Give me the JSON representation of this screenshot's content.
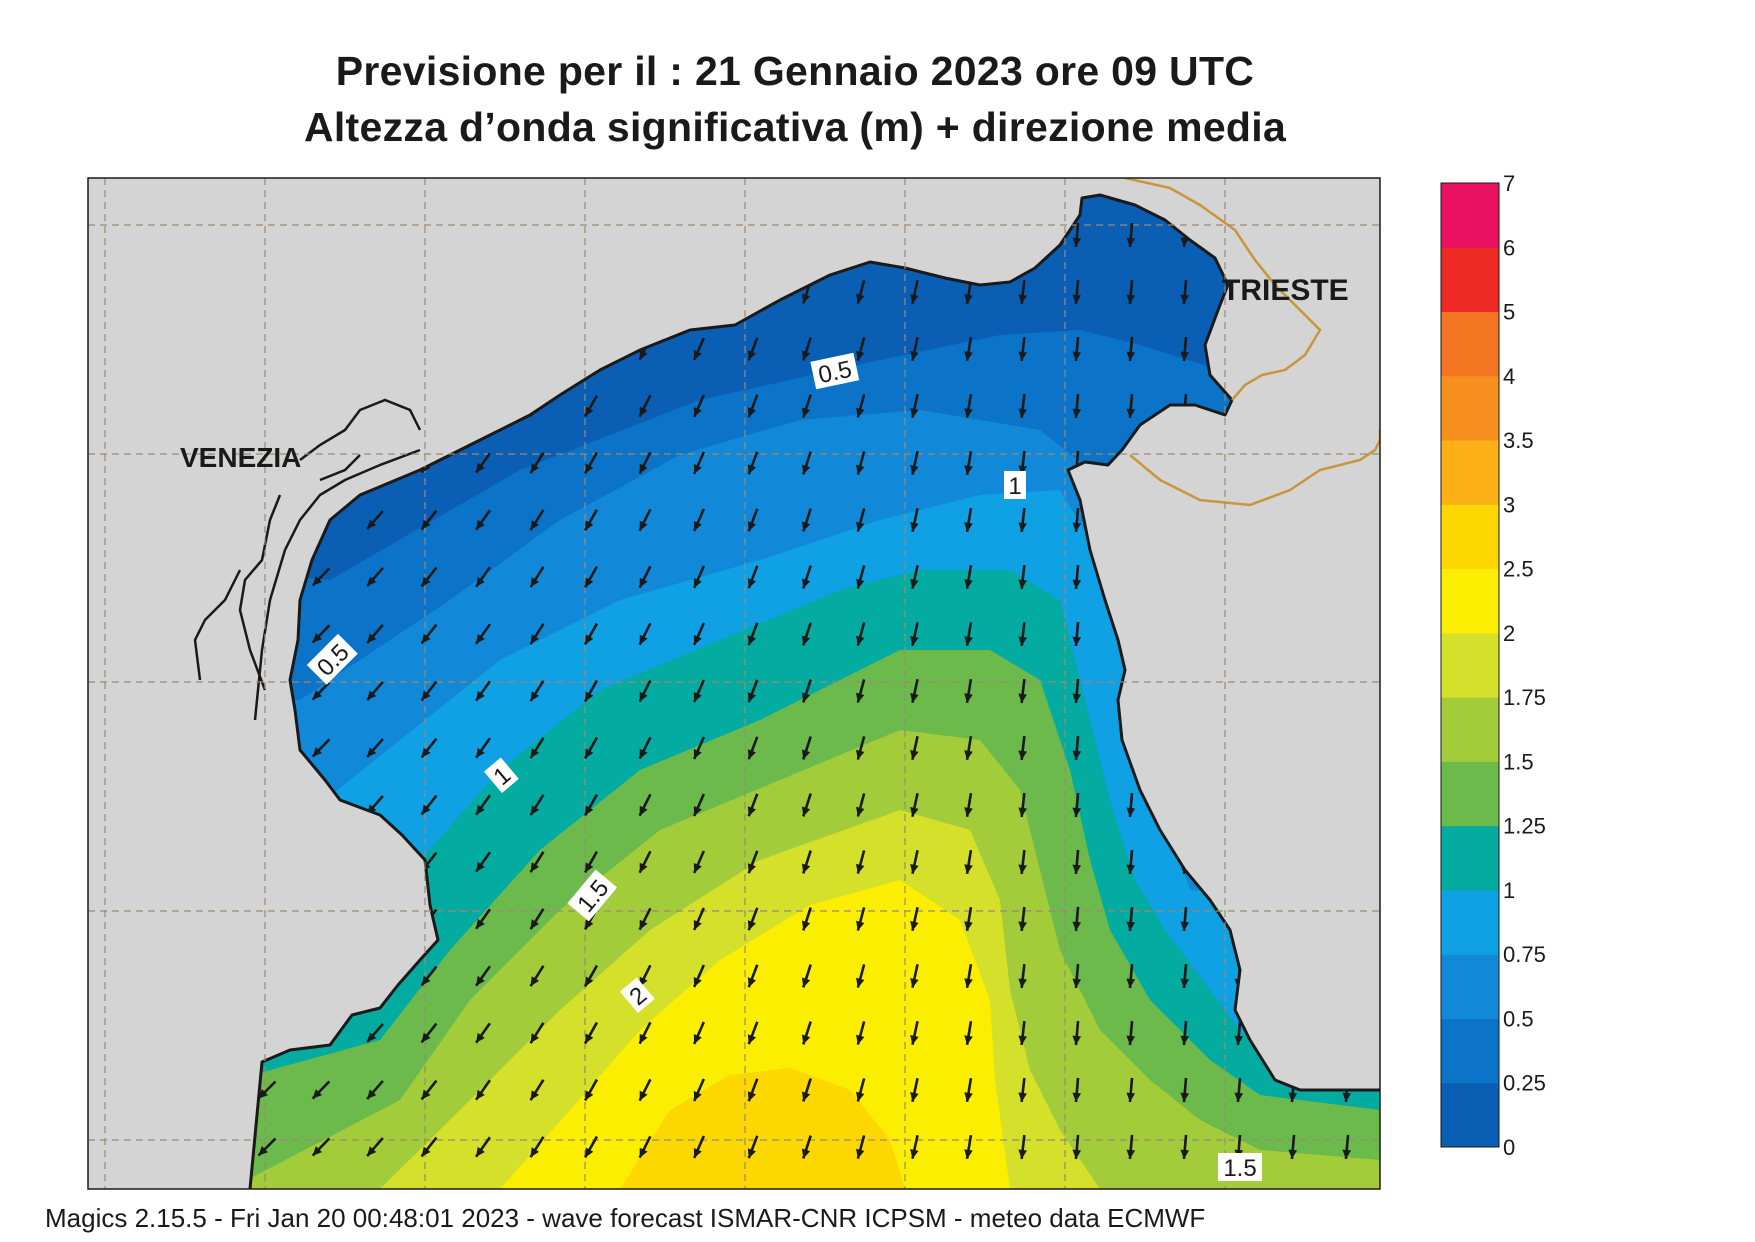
{
  "header": {
    "title_line1": "Previsione per il  :  21  Gennaio  2023   ore 09 UTC",
    "title_line2": "Altezza d’onda significativa (m) + direzione media"
  },
  "map": {
    "place_labels": [
      {
        "id": "venezia",
        "text": "VENEZIA"
      },
      {
        "id": "trieste",
        "text": "TRIESTE"
      }
    ],
    "contour_labels": [
      {
        "id": "c05-north",
        "text": "0.5"
      },
      {
        "id": "c1-east",
        "text": "1"
      },
      {
        "id": "c05-west",
        "text": "0.5"
      },
      {
        "id": "c1-west",
        "text": "1"
      },
      {
        "id": "c15-west",
        "text": "1.5"
      },
      {
        "id": "c2-south",
        "text": "2"
      },
      {
        "id": "c15-south",
        "text": "1.5"
      }
    ],
    "land_color": "#d4d4d4",
    "coast_color": "#1a1a1a",
    "border_color": "#c8953a",
    "arrow_color": "#1a1a1a",
    "grid_color": "#9a8a70"
  },
  "legend": {
    "title": "",
    "levels": [
      {
        "label": "0",
        "color": "#0a5fb4"
      },
      {
        "label": "0.25",
        "color": "#0b74c8"
      },
      {
        "label": "0.5",
        "color": "#1289d8"
      },
      {
        "label": "0.75",
        "color": "#0fa1e4"
      },
      {
        "label": "1",
        "color": "#03aba0"
      },
      {
        "label": "1.25",
        "color": "#6cba4c"
      },
      {
        "label": "1.5",
        "color": "#a3cc3a"
      },
      {
        "label": "1.75",
        "color": "#d4e02a"
      },
      {
        "label": "2",
        "color": "#fbee00"
      },
      {
        "label": "2.5",
        "color": "#fcd800"
      },
      {
        "label": "3",
        "color": "#fdb016"
      },
      {
        "label": "3.5",
        "color": "#f7901e"
      },
      {
        "label": "4",
        "color": "#f47521"
      },
      {
        "label": "5",
        "color": "#ee2a24"
      },
      {
        "label": "6",
        "color": "#ea1163"
      },
      {
        "label": "7",
        "color": ""
      }
    ]
  },
  "footer": {
    "text": "Magics 2.15.5 - Fri Jan 20 00:48:01 2023 - wave forecast  ISMAR-CNR  ICPSM - meteo data   ECMWF"
  }
}
